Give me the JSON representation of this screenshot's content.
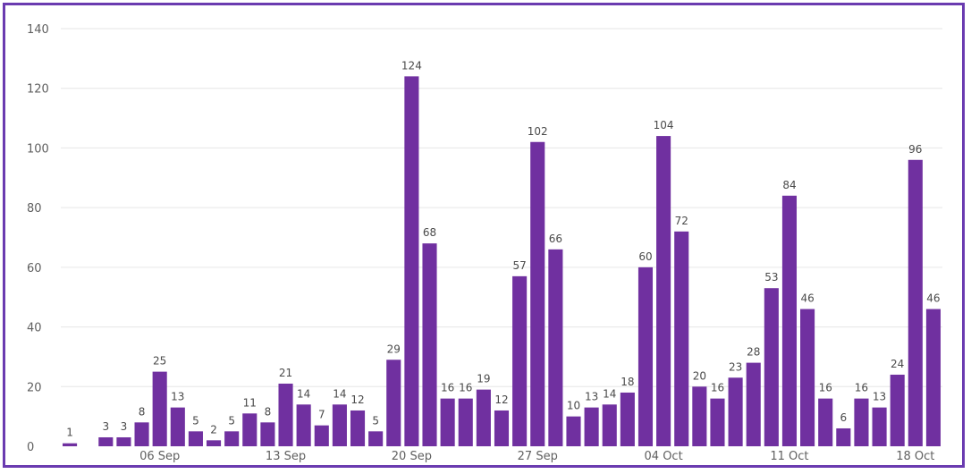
{
  "chart_data": {
    "type": "bar",
    "title": "",
    "xlabel": "",
    "ylabel": "",
    "ylim": [
      0,
      140
    ],
    "yticks": [
      0,
      20,
      40,
      60,
      80,
      100,
      120,
      140
    ],
    "grid": true,
    "bar_color": "#7030a0",
    "x_tick_labels": [
      {
        "index": 5,
        "label": "06 Sep"
      },
      {
        "index": 12,
        "label": "13 Sep"
      },
      {
        "index": 19,
        "label": "20 Sep"
      },
      {
        "index": 26,
        "label": "27 Sep"
      },
      {
        "index": 33,
        "label": "04 Oct"
      },
      {
        "index": 40,
        "label": "11 Oct"
      },
      {
        "index": 47,
        "label": "18 Oct"
      }
    ],
    "values": [
      1,
      0,
      3,
      3,
      8,
      25,
      13,
      5,
      2,
      5,
      11,
      8,
      21,
      14,
      7,
      14,
      12,
      5,
      29,
      124,
      68,
      16,
      16,
      19,
      12,
      57,
      102,
      66,
      10,
      13,
      14,
      18,
      60,
      104,
      72,
      20,
      16,
      23,
      28,
      53,
      84,
      46,
      16,
      6,
      16,
      13,
      24,
      96,
      46
    ]
  },
  "frame_color": "#6a3bb0"
}
